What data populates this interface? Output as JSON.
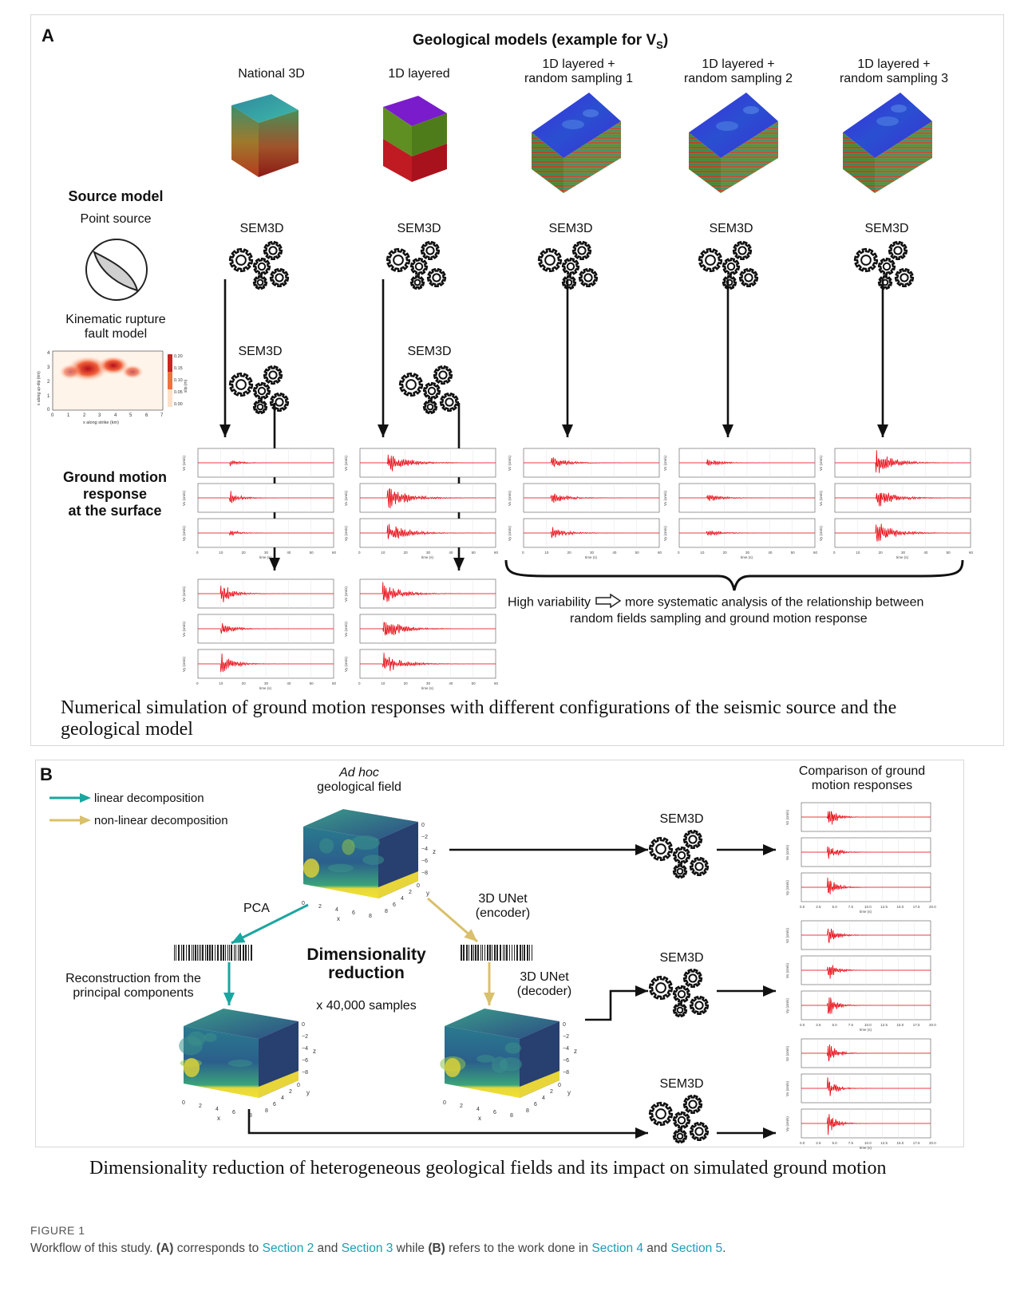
{
  "panel_a": {
    "label": "A",
    "header_main": "Geological models (example for V",
    "header_sub": "S",
    "header_end": ")",
    "models": [
      {
        "line1": "National 3D",
        "line2": ""
      },
      {
        "line1": "1D layered",
        "line2": ""
      },
      {
        "line1": "1D layered +",
        "line2": "random sampling 1"
      },
      {
        "line1": "1D layered +",
        "line2": "random sampling 2"
      },
      {
        "line1": "1D layered +",
        "line2": "random sampling 3"
      }
    ],
    "source_model_title": "Source model",
    "point_source_label": "Point source",
    "kinematic_label_1": "Kinematic rupture",
    "kinematic_label_2": "fault model",
    "heatmap": {
      "xlabel": "x along strike (km)",
      "ylabel": "x along up-dip (km)",
      "colorbar_label": "slip (m)",
      "x_ticks": [
        "0",
        "1",
        "2",
        "3",
        "4",
        "5",
        "6",
        "7"
      ],
      "y_ticks": [
        "0",
        "1",
        "2",
        "3",
        "4"
      ],
      "cbar_ticks": [
        "0.20",
        "0.15",
        "0.10",
        "0.05",
        "0.00"
      ]
    },
    "sem3d_label": "SEM3D",
    "ground_motion_1": "Ground motion",
    "ground_motion_2": "response",
    "ground_motion_3": "at the surface",
    "time_axis_label": "time (s)",
    "time_ticks": [
      "0",
      "10",
      "20",
      "30",
      "40",
      "50",
      "60"
    ],
    "velocity_labels": [
      "Vz (cm/s)",
      "Vx (cm/s)",
      "Vy (cm/s)"
    ],
    "variability_text_1": "High variability",
    "variability_text_2": "more systematic analysis of the relationship between",
    "variability_text_3": "random fields sampling and ground motion response",
    "caption": "Numerical simulation of ground motion responses with different configurations of the seismic source and the geological model"
  },
  "panel_b": {
    "label": "B",
    "legend_linear": "linear decomposition",
    "legend_nonlinear": "non-linear decomposition",
    "legend_linear_color": "#1aa6a0",
    "legend_nonlinear_color": "#d9c06a",
    "adhoc_italic": "Ad hoc",
    "adhoc_rest": "geological field",
    "comparison_1": "Comparison of ground",
    "comparison_2": "motion responses",
    "sem3d_label": "SEM3D",
    "pca_label": "PCA",
    "unet_encoder_1": "3D UNet",
    "unet_encoder_2": "(encoder)",
    "unet_decoder_1": "3D UNet",
    "unet_decoder_2": "(decoder)",
    "dim_red_1": "Dimensionality",
    "dim_red_2": "reduction",
    "samples": "x 40,000 samples",
    "recon_1": "Reconstruction from the",
    "recon_2": "principal components",
    "cube_axis_x": "x",
    "cube_axis_y": "y",
    "cube_axis_z": "z",
    "time_axis_label": "time (s)",
    "time_ticks": [
      "0.0",
      "2.5",
      "5.0",
      "7.5",
      "10.0",
      "12.5",
      "15.0",
      "17.5",
      "20.0"
    ],
    "caption": "Dimensionality reduction of heterogeneous geological fields and its impact on simulated ground motion"
  },
  "figure_label": "FIGURE 1",
  "figure_caption": {
    "p1": "Workflow of this study. ",
    "a": "(A)",
    "p2": " corresponds to ",
    "s2": "Section 2",
    "p3": " and ",
    "s3": "Section 3",
    "p4": " while ",
    "b": "(B)",
    "p5": " refers to the work done in ",
    "s4": "Section 4",
    "p6": " and ",
    "s5": "Section 5",
    "p7": "."
  },
  "colors": {
    "trace": "#e8000b",
    "teal": "#1aa6a0",
    "gold": "#d9c06a",
    "link": "#1a9fb4"
  }
}
